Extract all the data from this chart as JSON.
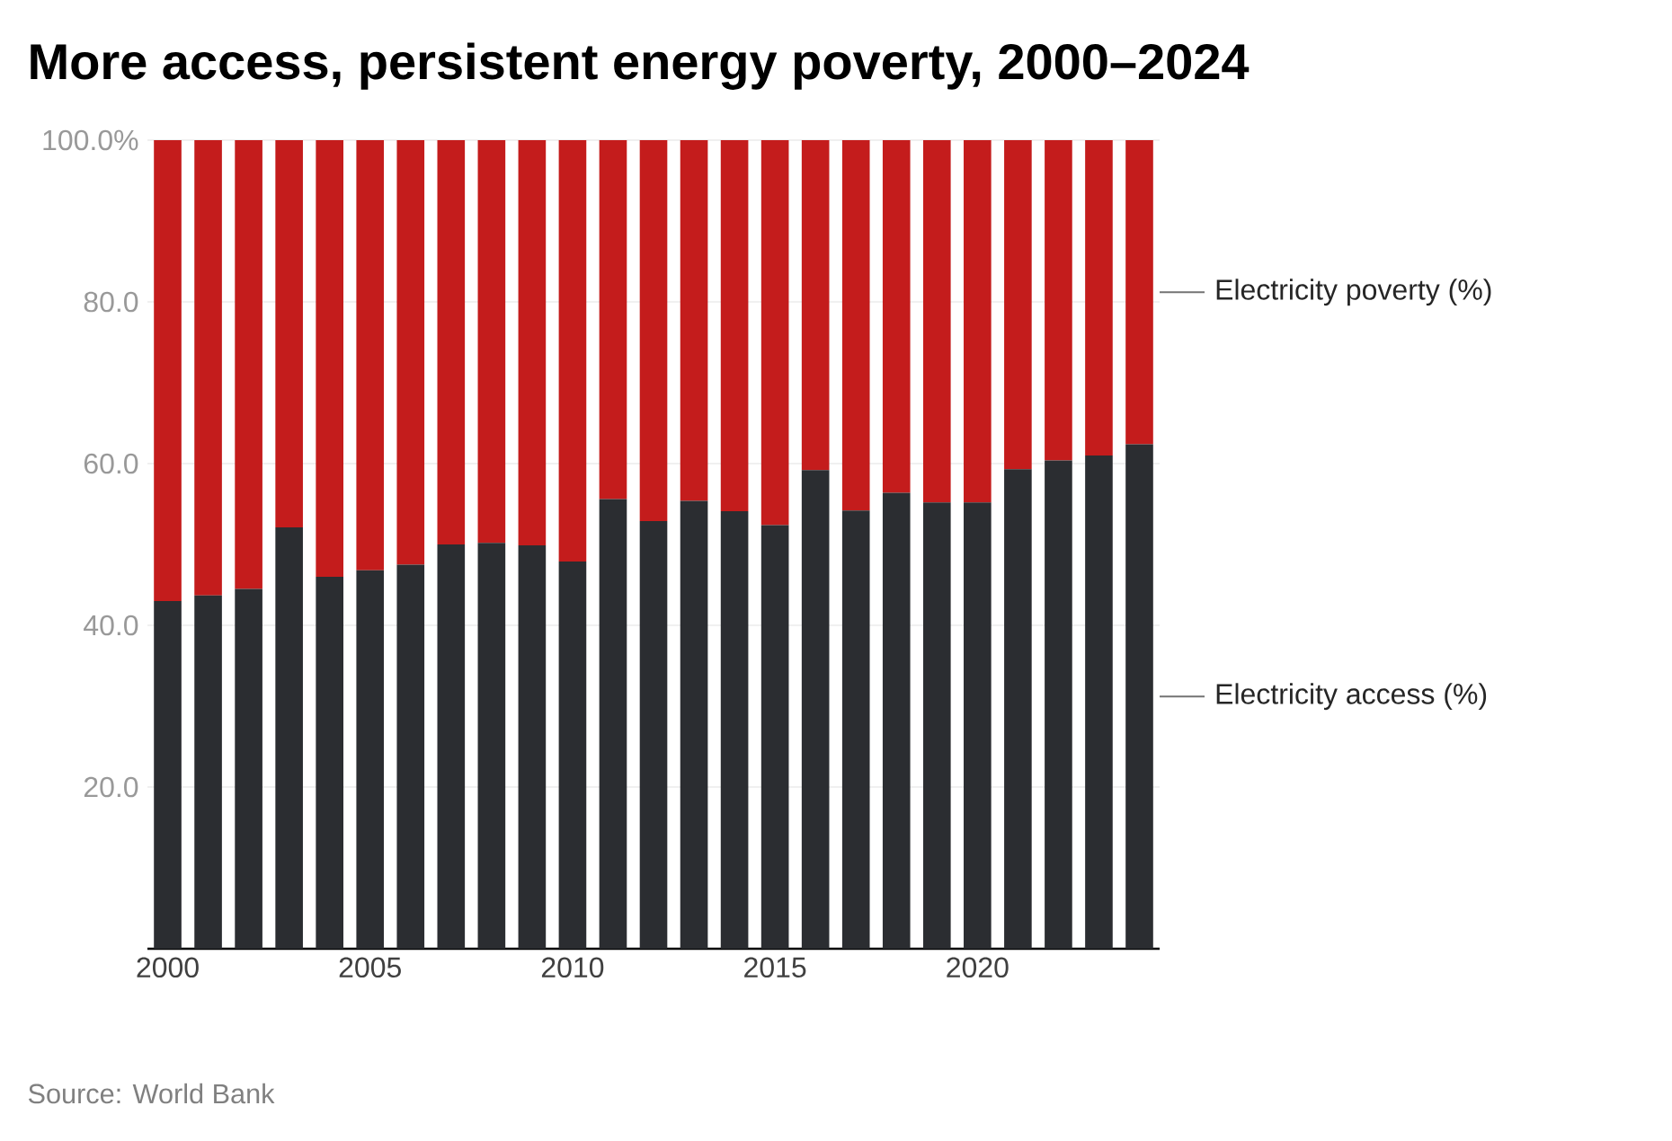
{
  "chart_data": {
    "type": "bar",
    "stacked": true,
    "title": "More access, persistent energy poverty, 2000–2024",
    "x": [
      2000,
      2001,
      2002,
      2003,
      2004,
      2005,
      2006,
      2007,
      2008,
      2009,
      2010,
      2011,
      2012,
      2013,
      2014,
      2015,
      2016,
      2017,
      2018,
      2019,
      2020,
      2021,
      2022,
      2023,
      2024
    ],
    "series": [
      {
        "name": "Electricity access (%)",
        "color": "#2b2d31",
        "values": [
          43.0,
          43.7,
          44.5,
          52.1,
          46.0,
          46.8,
          47.5,
          50.0,
          50.2,
          49.9,
          47.9,
          55.6,
          52.9,
          55.4,
          54.1,
          52.4,
          59.2,
          54.2,
          56.4,
          55.2,
          55.2,
          59.3,
          60.4,
          61.0,
          62.4
        ]
      },
      {
        "name": "Electricity poverty (%)",
        "color": "#c41c1c",
        "values": [
          57.0,
          56.3,
          55.5,
          47.9,
          54.0,
          53.2,
          52.5,
          50.0,
          49.8,
          50.1,
          52.1,
          44.4,
          47.1,
          44.6,
          45.9,
          47.6,
          40.8,
          45.8,
          43.6,
          44.8,
          44.8,
          40.7,
          39.6,
          39.0,
          37.6
        ]
      }
    ],
    "xlim": [
      1999.5,
      2024.5
    ],
    "ylim": [
      0,
      100
    ],
    "xticks": [
      2000,
      2005,
      2010,
      2015,
      2020
    ],
    "yticks": [
      {
        "value": 20,
        "label": "20.0"
      },
      {
        "value": 40,
        "label": "40.0"
      },
      {
        "value": 60,
        "label": "60.0"
      },
      {
        "value": 80,
        "label": "80.0"
      },
      {
        "value": 100,
        "label": "100.0%"
      }
    ],
    "grid": "y",
    "annotations": [
      "Source: World Bank"
    ]
  }
}
